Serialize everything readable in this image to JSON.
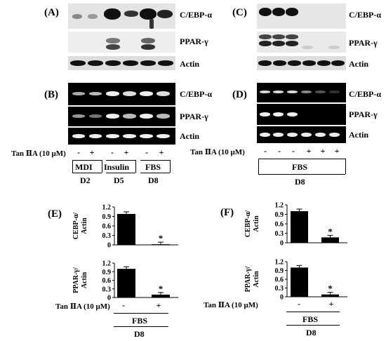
{
  "panels": {
    "A": {
      "label": "(A)",
      "rows": [
        "C/EBP-α",
        "PPAR-γ",
        "Actin"
      ]
    },
    "B": {
      "label": "(B)",
      "rows": [
        "C/EBP-α",
        "PPAR-γ",
        "Actin"
      ]
    },
    "C": {
      "label": "(C)",
      "rows": [
        "C/EBP-α",
        "PPAR-γ",
        "Actin"
      ]
    },
    "D": {
      "label": "(D)",
      "rows": [
        "C/EBP-α",
        "PPAR-γ",
        "Actin"
      ]
    },
    "E": {
      "label": "(E)"
    },
    "F": {
      "label": "(F)"
    }
  },
  "treatment_left": {
    "label": "Tan ⅡA (10 μM)",
    "signs": [
      "-",
      "+",
      "-",
      "+",
      "-",
      "+"
    ],
    "groups": [
      "MDI",
      "Insulin",
      "FBS"
    ],
    "days": [
      "D2",
      "D5",
      "D8"
    ]
  },
  "treatment_right": {
    "label": "Tan ⅡA (10 μM)",
    "signs": [
      "-",
      "-",
      "-",
      "+",
      "+",
      "+"
    ],
    "group": "FBS",
    "day": "D8"
  },
  "bar_treatment": {
    "label": "Tan ⅡA  (10 μM)",
    "signs": [
      "-",
      "+"
    ],
    "group": "FBS",
    "day": "D8"
  },
  "chart_data": [
    {
      "panel": "E-top",
      "type": "bar",
      "ylabel": "CEBP-α/ Actin",
      "ylim": [
        0,
        1.2
      ],
      "yticks": [
        "0",
        "0.3",
        "0.6",
        "0.9",
        "1.2"
      ],
      "categories": [
        "-",
        "+"
      ],
      "values": [
        0.98,
        0.02
      ],
      "significance": [
        "",
        "*"
      ]
    },
    {
      "panel": "E-bottom",
      "type": "bar",
      "ylabel": "PPAR-γ/ Actin",
      "ylim": [
        0,
        1.2
      ],
      "yticks": [
        "0",
        "0.3",
        "0.6",
        "0.9",
        "1.2"
      ],
      "categories": [
        "-",
        "+"
      ],
      "values": [
        1.0,
        0.1
      ],
      "significance": [
        "",
        "*"
      ]
    },
    {
      "panel": "F-top",
      "type": "bar",
      "ylabel": "CEBP-α/ Actin",
      "ylim": [
        0,
        1.2
      ],
      "yticks": [
        "0",
        "0.3",
        "0.6",
        "0.9",
        "1.2"
      ],
      "categories": [
        "-",
        "+"
      ],
      "values": [
        1.0,
        0.17
      ],
      "significance": [
        "",
        "*"
      ]
    },
    {
      "panel": "F-bottom",
      "type": "bar",
      "ylabel": "PPAR-γ/ Actin",
      "ylim": [
        0,
        1.2
      ],
      "yticks": [
        "0",
        "0.3",
        "0.6",
        "0.9",
        "1.2"
      ],
      "categories": [
        "-",
        "+"
      ],
      "values": [
        1.0,
        0.08
      ],
      "significance": [
        "",
        "*"
      ]
    }
  ]
}
